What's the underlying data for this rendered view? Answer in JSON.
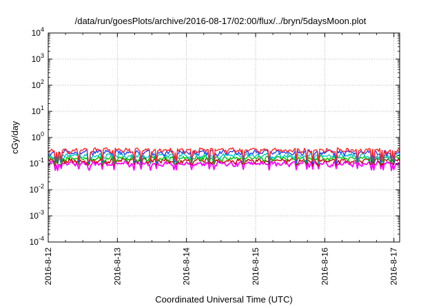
{
  "chart_data": {
    "type": "line",
    "title": "/data/run/goesPlots/archive/2016-08-17/02:00/flux/../bryn/5daysMoon.plot",
    "xlabel": "Coordinated Universal Time (UTC)",
    "ylabel": "cGy/day",
    "y_scale": "log",
    "ylim": [
      0.0001,
      10000
    ],
    "xlim": [
      "2016-08-12 00:00",
      "2016-08-17 02:00"
    ],
    "grid": true,
    "legend": "none",
    "x_ticks": [
      "2016-8-12",
      "2016-8-13",
      "2016-8-14",
      "2016-8-15",
      "2016-8-16",
      "2016-8-17"
    ],
    "y_ticks": [
      {
        "base": "10",
        "exp": "-4"
      },
      {
        "base": "10",
        "exp": "-3"
      },
      {
        "base": "10",
        "exp": "-2"
      },
      {
        "base": "10",
        "exp": "-1"
      },
      {
        "base": "10",
        "exp": "0"
      },
      {
        "base": "10",
        "exp": "1"
      },
      {
        "base": "10",
        "exp": "2"
      },
      {
        "base": "10",
        "exp": "3"
      },
      {
        "base": "10",
        "exp": "4"
      }
    ],
    "series": [
      {
        "color": "#ff00ff",
        "baseline": 0.1,
        "dip_floor": 0.06
      },
      {
        "color": "#c00000",
        "baseline": 0.13,
        "dip_floor": 0.09
      },
      {
        "color": "#00c000",
        "baseline": 0.16,
        "dip_floor": 0.1
      },
      {
        "color": "#00c8c8",
        "baseline": 0.2,
        "dip_floor": 0.11
      },
      {
        "color": "#2040ff",
        "baseline": 0.27,
        "dip_floor": 0.11
      },
      {
        "color": "#ff2020",
        "baseline": 0.32,
        "dip_floor": 0.13
      }
    ]
  }
}
